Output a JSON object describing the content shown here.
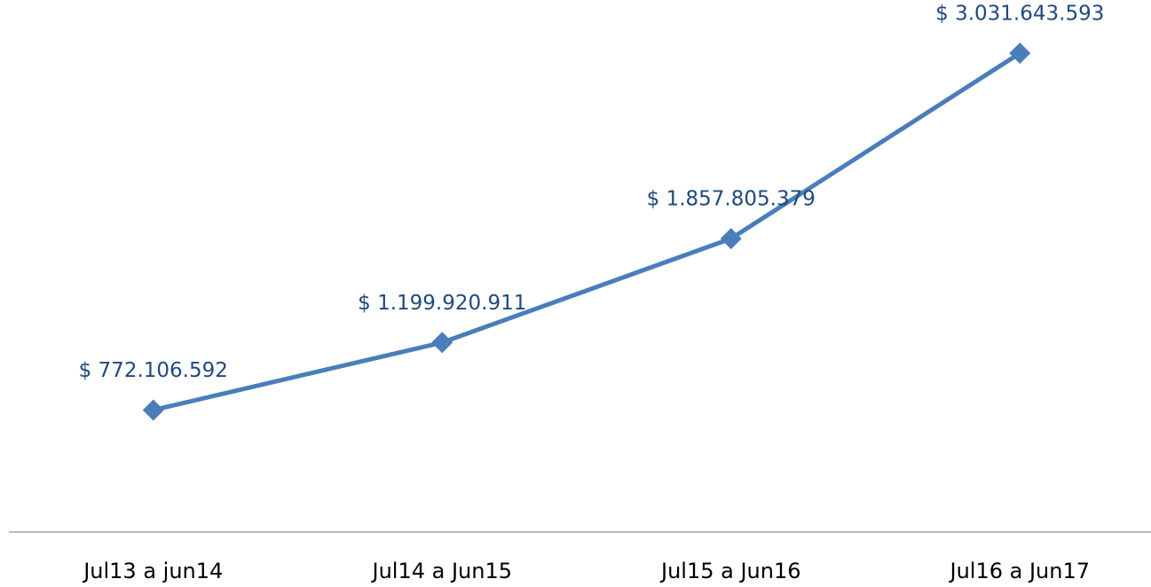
{
  "chart_data": {
    "type": "line",
    "categories": [
      "Jul13 a jun14",
      "Jul14 a Jun15",
      "Jul15 a Jun16",
      "Jul16 a Jun17"
    ],
    "series": [
      {
        "color": "#4a7ebb",
        "values": [
          772106592,
          1199920911,
          1857805379,
          3031643593
        ],
        "value_labels": [
          "$ 772.106.592",
          "$ 1.199.920.911",
          "$ 1.857.805.379",
          "$ 3.031.643.593"
        ]
      }
    ]
  }
}
